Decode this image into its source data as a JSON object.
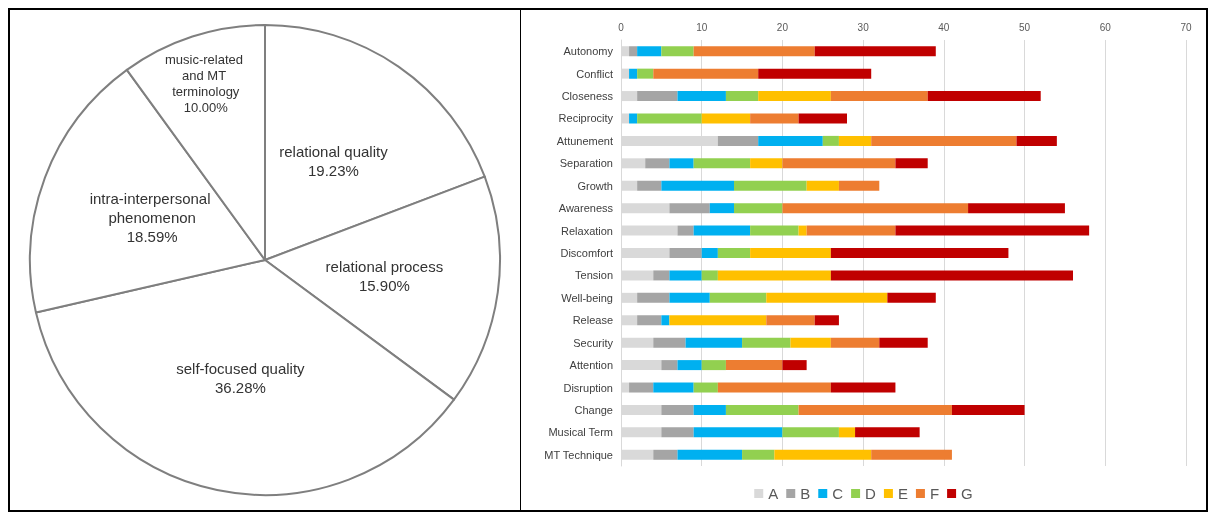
{
  "chart_data": [
    {
      "type": "pie",
      "categories": [
        "relational quality",
        "relational process",
        "self-focused quality",
        "intra-interpersonal phenomenon",
        "music-related and MT terminology"
      ],
      "values": [
        19.23,
        15.9,
        36.28,
        18.59,
        10.0
      ],
      "value_labels": [
        "19.23%",
        "15.90%",
        "36.28%",
        "18.59%",
        "10.00%"
      ],
      "colors": [
        "#ffffff",
        "#ffffff",
        "#ffffff",
        "#ffffff",
        "#ffffff"
      ]
    },
    {
      "type": "bar",
      "orientation": "horizontal",
      "stacked": true,
      "categories": [
        "Autonomy",
        "Conflict",
        "Closeness",
        "Reciprocity",
        "Attunement",
        "Separation",
        "Growth",
        "Awareness",
        "Relaxation",
        "Discomfort",
        "Tension",
        "Well-being",
        "Release",
        "Security",
        "Attention",
        "Disruption",
        "Change",
        "Musical Term",
        "MT Technique"
      ],
      "xlim": [
        0,
        70
      ],
      "xticks": [
        0,
        10,
        20,
        30,
        40,
        50,
        60,
        70
      ],
      "grid": "x",
      "legend": "bottom",
      "series": [
        {
          "name": "A",
          "color": "#d9d9d9",
          "values": [
            1,
            1,
            2,
            1,
            12,
            3,
            2,
            6,
            7,
            6,
            4,
            2,
            2,
            4,
            5,
            1,
            5,
            5,
            4
          ]
        },
        {
          "name": "B",
          "color": "#a5a5a5",
          "values": [
            1,
            0,
            5,
            0,
            5,
            3,
            3,
            5,
            2,
            4,
            2,
            4,
            3,
            4,
            2,
            3,
            4,
            4,
            3
          ]
        },
        {
          "name": "C",
          "color": "#00b0f0",
          "values": [
            3,
            1,
            6,
            1,
            8,
            3,
            9,
            3,
            7,
            2,
            4,
            5,
            1,
            7,
            3,
            5,
            4,
            11,
            8
          ]
        },
        {
          "name": "D",
          "color": "#92d050",
          "values": [
            4,
            2,
            4,
            8,
            2,
            7,
            9,
            6,
            6,
            4,
            2,
            7,
            0,
            6,
            3,
            3,
            9,
            7,
            4
          ]
        },
        {
          "name": "E",
          "color": "#ffc000",
          "values": [
            0,
            0,
            9,
            6,
            4,
            4,
            4,
            0,
            1,
            10,
            14,
            15,
            12,
            5,
            0,
            0,
            0,
            2,
            12
          ]
        },
        {
          "name": "F",
          "color": "#ed7d31",
          "values": [
            15,
            13,
            12,
            6,
            18,
            14,
            5,
            23,
            11,
            0,
            0,
            0,
            6,
            6,
            7,
            14,
            19,
            0,
            10
          ]
        },
        {
          "name": "G",
          "color": "#c00000",
          "values": [
            15,
            14,
            14,
            6,
            5,
            4,
            0,
            12,
            24,
            22,
            30,
            6,
            3,
            6,
            3,
            8,
            9,
            8,
            0
          ]
        }
      ]
    }
  ]
}
